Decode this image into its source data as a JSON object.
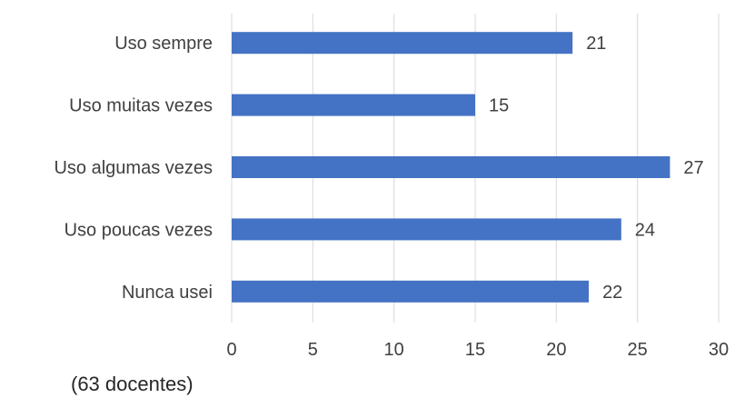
{
  "chart_data": {
    "type": "bar",
    "orientation": "horizontal",
    "categories": [
      "Uso sempre",
      "Uso muitas vezes",
      "Uso algumas vezes",
      "Uso poucas vezes",
      "Nunca usei"
    ],
    "values": [
      21,
      15,
      27,
      24,
      22
    ],
    "title": "",
    "xlabel": "",
    "ylabel": "",
    "xlim": [
      0,
      30
    ],
    "x_ticks": [
      "0",
      "5",
      "10",
      "15",
      "20",
      "25",
      "30"
    ],
    "grid": "vertical",
    "legend": "none",
    "data_labels": true,
    "bar_color": "#4472c4",
    "grid_color": "#d9d9d9"
  },
  "footnote": "(63 docentes)"
}
